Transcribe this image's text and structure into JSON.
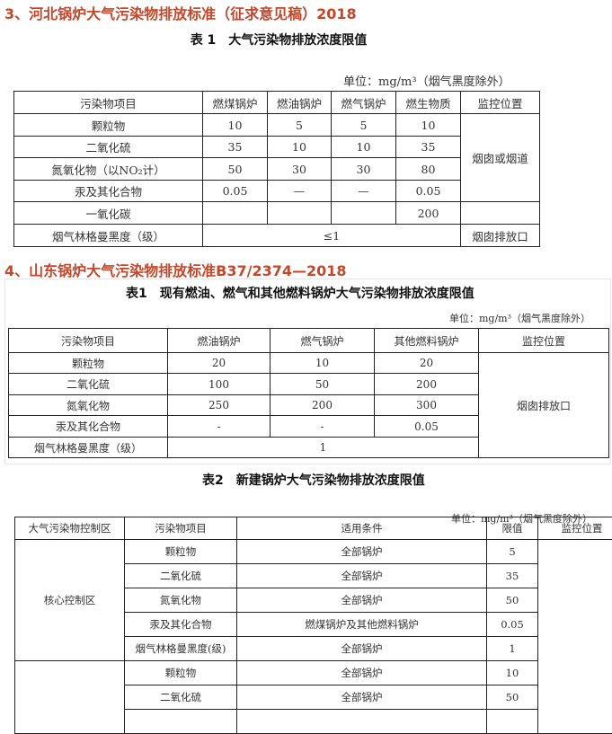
{
  "hebei": {
    "heading": "3、河北锅炉大气污染物排放标准（征求意见稿）2018",
    "table_title": "表 1　大气污染物排放浓度限值",
    "unit": "单位：mg/m³（烟气黑度除外）",
    "headers": [
      "污染物项目",
      "燃煤锅炉",
      "燃油锅炉",
      "燃气锅炉",
      "燃生物质",
      "监控位置"
    ],
    "rows": [
      [
        "颗粒物",
        "10",
        "5",
        "5",
        "10"
      ],
      [
        "二氧化硫",
        "35",
        "10",
        "10",
        "35"
      ],
      [
        "氮氧化物（以NO₂计）",
        "50",
        "30",
        "30",
        "80"
      ],
      [
        "汞及其化合物",
        "0.05",
        "—",
        "—",
        "0.05"
      ],
      [
        "一氧化碳",
        "",
        "",
        "",
        "200"
      ]
    ],
    "monitor_1": "烟囱或烟道",
    "last_row": {
      "label": "烟气林格曼黑度（级）",
      "value": "≤1",
      "monitor": "烟囱排放口"
    }
  },
  "shandong": {
    "heading": "4、山东锅炉大气污染物排放标准B37/2374—2018",
    "table1": {
      "title": "表1　现有燃油、燃气和其他燃料锅炉大气污染物排放浓度限值",
      "unit": "单位：mg/m³（烟气黑度除外）",
      "headers": [
        "污染物项目",
        "燃油锅炉",
        "燃气锅炉",
        "其他燃料锅炉",
        "监控位置"
      ],
      "rows": [
        [
          "颗粒物",
          "20",
          "10",
          "20"
        ],
        [
          "二氧化硫",
          "100",
          "50",
          "200"
        ],
        [
          "氮氧化物",
          "250",
          "200",
          "300"
        ],
        [
          "汞及其化合物",
          "-",
          "-",
          "0.05"
        ]
      ],
      "monitor": "烟囱排放口",
      "last_row": {
        "label": "烟气林格曼黑度（级）",
        "value": "1"
      }
    },
    "table2": {
      "title": "表2　新建锅炉大气污染物排放浓度限值",
      "unit": "单位：mg/m³（烟气黑度除外）",
      "headers": [
        "大气污染物控制区",
        "污染物项目",
        "适用条件",
        "限值",
        "监控位置"
      ],
      "group1": "核心控制区",
      "rows1": [
        [
          "颗粒物",
          "全部锅炉",
          "5"
        ],
        [
          "二氧化硫",
          "全部锅炉",
          "35"
        ],
        [
          "氮氧化物",
          "全部锅炉",
          "50"
        ],
        [
          "汞及其化合物",
          "燃煤锅炉及其他燃料锅炉",
          "0.05"
        ],
        [
          "烟气林格曼黑度(级)",
          "全部锅炉",
          "1"
        ]
      ],
      "rows2": [
        [
          "颗粒物",
          "全部锅炉",
          "10"
        ],
        [
          "二氧化硫",
          "全部锅炉",
          "50"
        ]
      ]
    }
  }
}
